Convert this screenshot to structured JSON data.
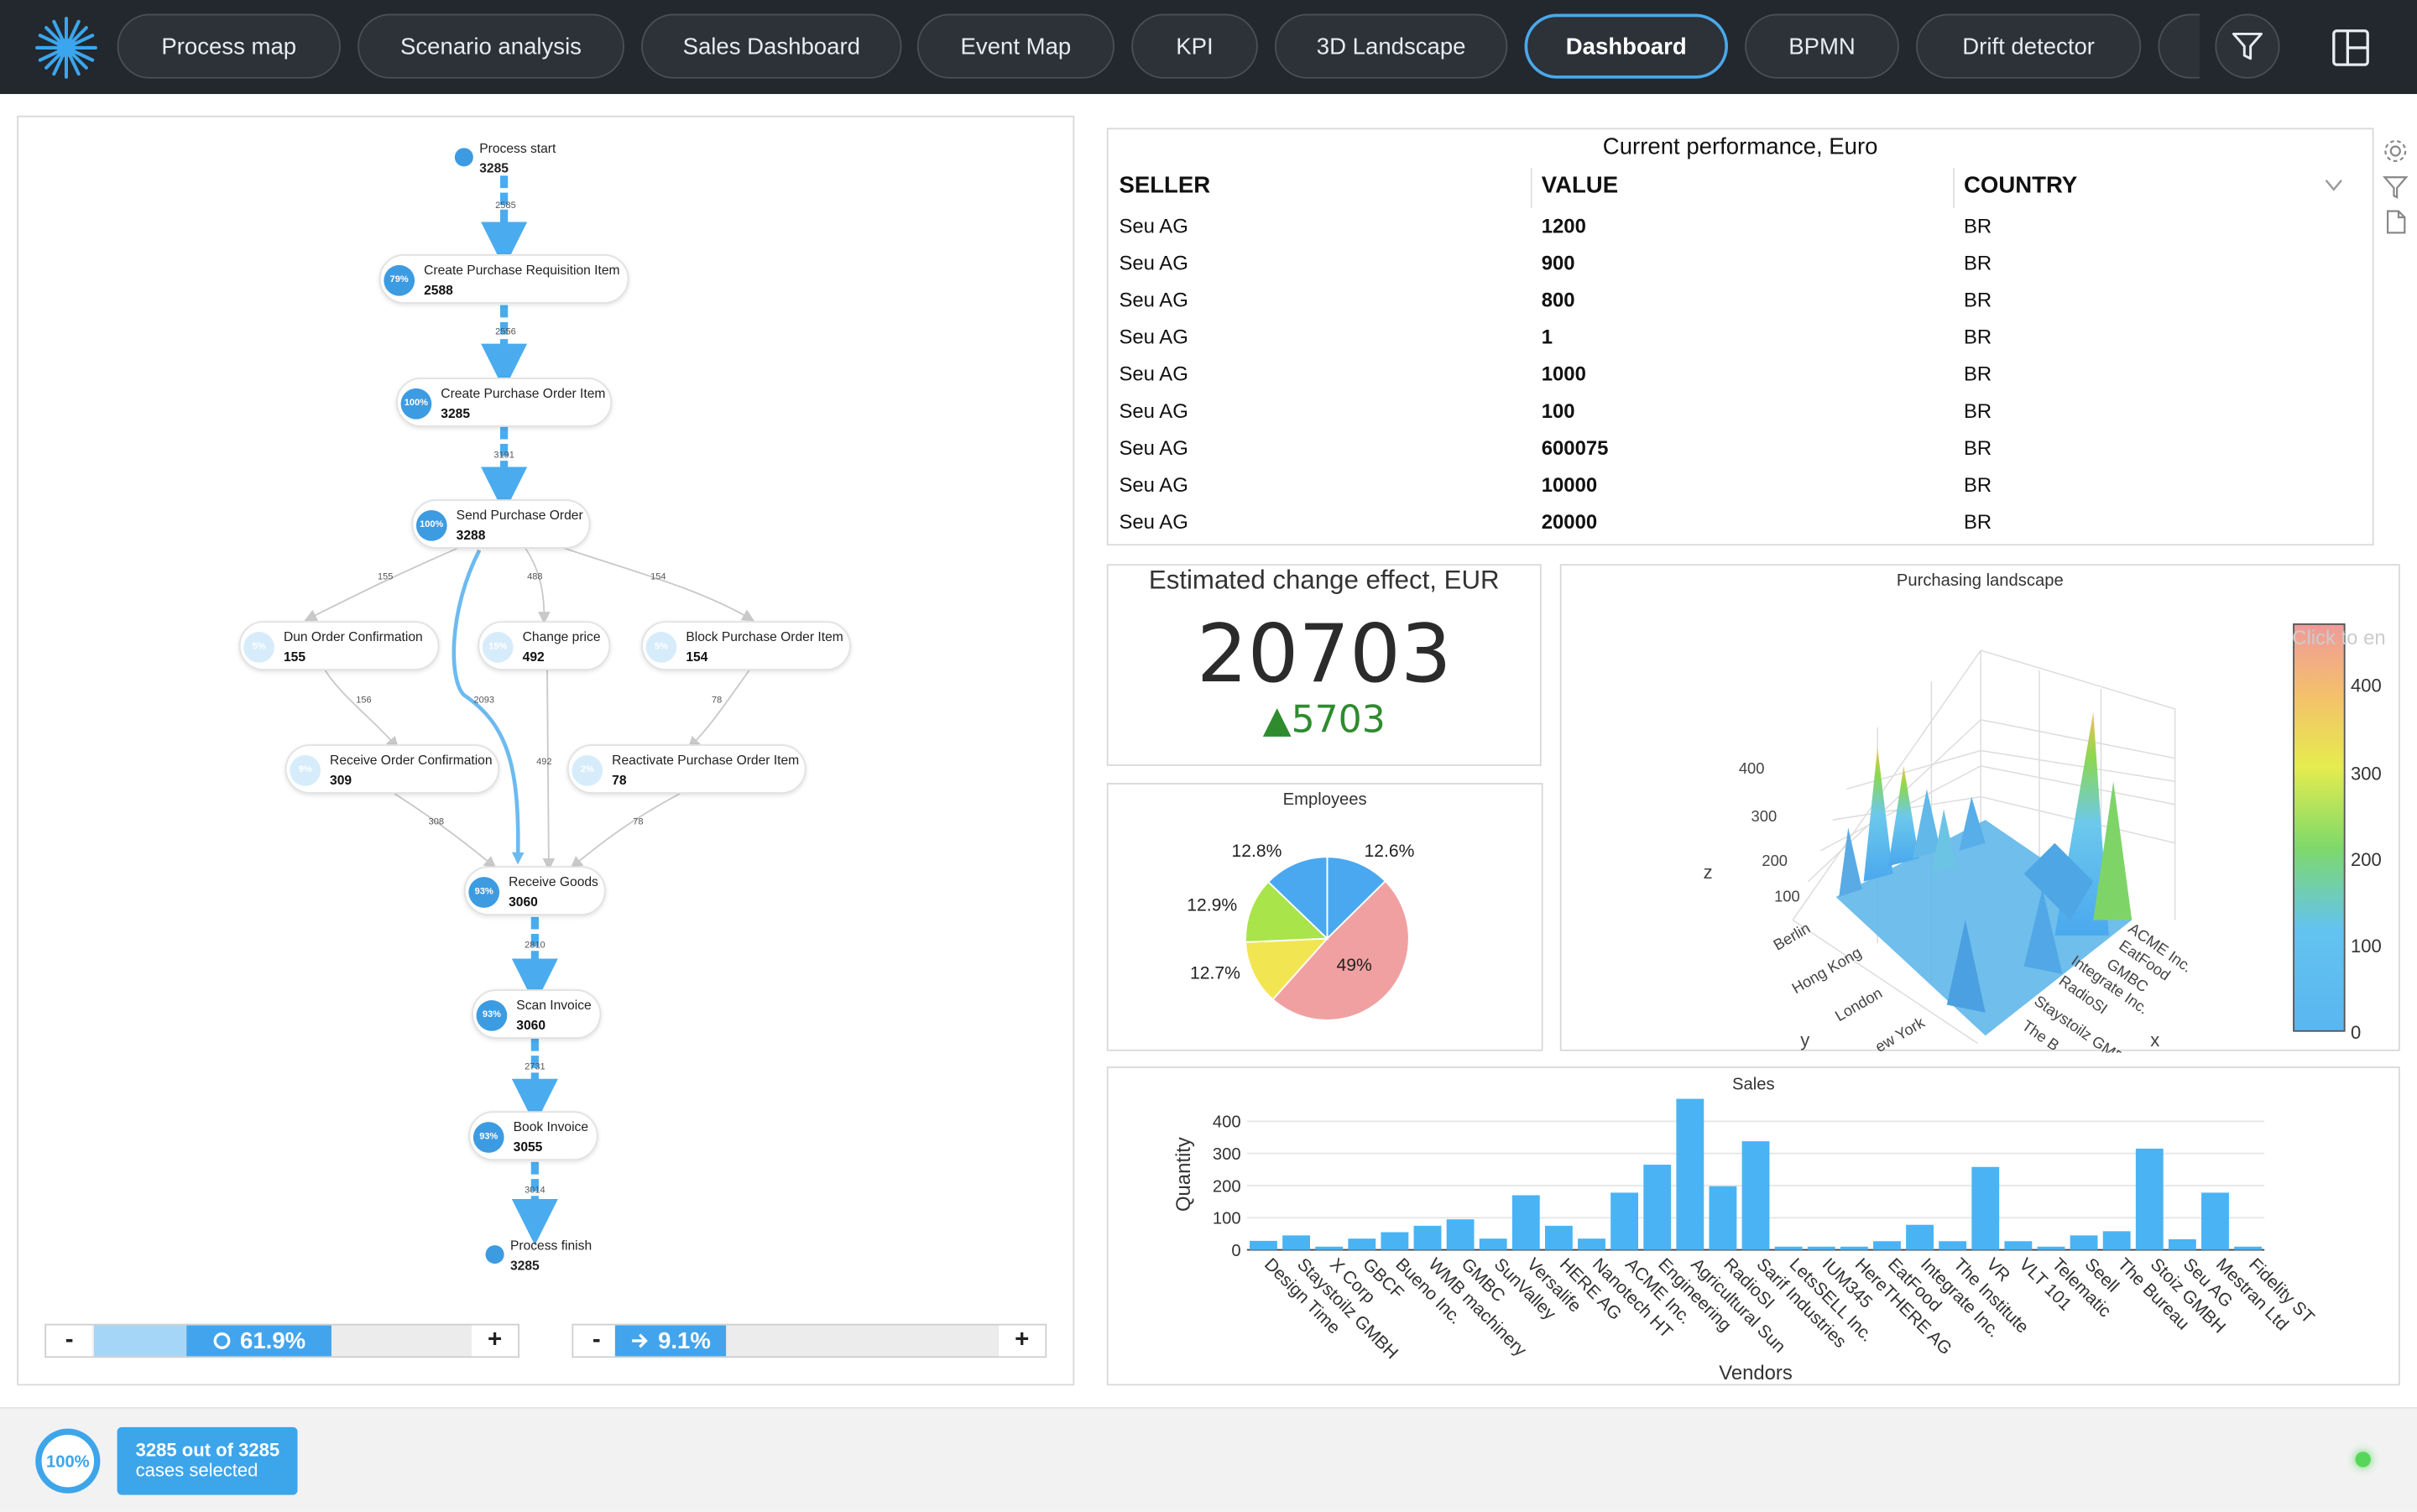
{
  "nav": {
    "tabs": [
      {
        "label": "Process map",
        "active": false
      },
      {
        "label": "Scenario analysis",
        "active": false
      },
      {
        "label": "Sales Dashboard",
        "active": false
      },
      {
        "label": "Event Map",
        "active": false
      },
      {
        "label": "KPI",
        "active": false
      },
      {
        "label": "3D Landscape",
        "active": false
      },
      {
        "label": "Dashboard",
        "active": true
      },
      {
        "label": "BPMN",
        "active": false
      },
      {
        "label": "Drift detector",
        "active": false
      }
    ],
    "icons": {
      "logo": "star-logo-icon",
      "filter": "filter-icon",
      "layout": "layout-icon"
    }
  },
  "process_map": {
    "nodes": [
      {
        "id": "start",
        "label": "Process start",
        "count": "3285",
        "pct": ""
      },
      {
        "id": "cpri",
        "label": "Create Purchase Requisition Item",
        "count": "2588",
        "pct": "79%"
      },
      {
        "id": "cpoi",
        "label": "Create Purchase Order Item",
        "count": "3285",
        "pct": "100%"
      },
      {
        "id": "spo",
        "label": "Send Purchase Order",
        "count": "3288",
        "pct": "100%"
      },
      {
        "id": "doc",
        "label": "Dun Order Confirmation",
        "count": "155",
        "pct": "5%"
      },
      {
        "id": "cp",
        "label": "Change price",
        "count": "492",
        "pct": "15%"
      },
      {
        "id": "bpoi",
        "label": "Block Purchase Order Item",
        "count": "154",
        "pct": "5%"
      },
      {
        "id": "roc",
        "label": "Receive Order Confirmation",
        "count": "309",
        "pct": "9%"
      },
      {
        "id": "rpoi",
        "label": "Reactivate Purchase Order Item",
        "count": "78",
        "pct": "2%"
      },
      {
        "id": "rg",
        "label": "Receive Goods",
        "count": "3060",
        "pct": "93%"
      },
      {
        "id": "si",
        "label": "Scan Invoice",
        "count": "3060",
        "pct": "93%"
      },
      {
        "id": "bi",
        "label": "Book Invoice",
        "count": "3055",
        "pct": "93%"
      },
      {
        "id": "finish",
        "label": "Process finish",
        "count": "3285",
        "pct": ""
      }
    ],
    "edge_labels": [
      "2585",
      "2556",
      "3191",
      "155",
      "488",
      "154",
      "156",
      "2093",
      "78",
      "492",
      "308",
      "78",
      "2810",
      "2731",
      "3014"
    ],
    "slider_activities": {
      "value": "61.9%",
      "fraction": 0.619,
      "minus": "-",
      "plus": "+"
    },
    "slider_paths": {
      "value": "9.1%",
      "fraction": 0.091,
      "minus": "-",
      "plus": "+"
    }
  },
  "performance_table": {
    "title": "Current performance, Euro",
    "columns": [
      "SELLER",
      "VALUE",
      "COUNTRY"
    ],
    "rows": [
      [
        "Seu AG",
        "1200",
        "BR"
      ],
      [
        "Seu AG",
        "900",
        "BR"
      ],
      [
        "Seu AG",
        "800",
        "BR"
      ],
      [
        "Seu AG",
        "1",
        "BR"
      ],
      [
        "Seu AG",
        "1000",
        "BR"
      ],
      [
        "Seu AG",
        "100",
        "BR"
      ],
      [
        "Seu AG",
        "600075",
        "BR"
      ],
      [
        "Seu AG",
        "10000",
        "BR"
      ],
      [
        "Seu AG",
        "20000",
        "BR"
      ]
    ],
    "icons": [
      "gear-icon",
      "filter-icon",
      "export-icon",
      "chevron-down-icon"
    ]
  },
  "kpi": {
    "title": "Estimated  change effect, EUR",
    "value": "20703",
    "delta": "▲5703",
    "delta_color": "#2e8b2e"
  },
  "chart_data": [
    {
      "type": "pie",
      "title": "Employees",
      "labels": [
        "12.6%",
        "49%",
        "12.7%",
        "12.9%",
        "12.8%"
      ],
      "values": [
        12.6,
        49.0,
        12.7,
        12.9,
        12.8
      ],
      "colors": [
        "#4aa8f0",
        "#f0a0a0",
        "#f2e552",
        "#a8e44a",
        "#4aa8f0"
      ]
    },
    {
      "type": "surface",
      "title": "Purchasing landscape",
      "xlabel": "x",
      "ylabel": "y",
      "zlabel": "z",
      "x_ticks": [
        "ACME Inc.",
        "EatFood",
        "GMBC",
        "Integrate Inc.",
        "RadioSI",
        "Staystoilz GMB",
        "The B"
      ],
      "y_ticks": [
        "Berlin",
        "Hong Kong",
        "London",
        "ew York"
      ],
      "z_ticks": [
        "100",
        "200",
        "300",
        "400"
      ],
      "colorbar_ticks": [
        "0",
        "100",
        "200",
        "300",
        "400"
      ],
      "colorbar_range": [
        0,
        450
      ],
      "overlay_text": "Click to en"
    },
    {
      "type": "bar",
      "title": "Sales",
      "xlabel": "Vendors",
      "ylabel": "Quantity",
      "ylim": [
        0,
        470
      ],
      "yticks": [
        0,
        100,
        200,
        300,
        400
      ],
      "color": "#4ab3f4",
      "categories": [
        "Design Time",
        "Staystoilz GMBH",
        "X Corp",
        "GBCF",
        "Bueno Inc.",
        "WMB machinery",
        "GMBC",
        "SunValley",
        "Versalife",
        "HERE AG",
        "Nanotech HT",
        "ACME Inc.",
        "Engineering",
        "Agricultural Sun",
        "RadioSI",
        "Sarif Industries",
        "LetsSELL Inc.",
        "IUM345",
        "HereTHERE AG",
        "EatFood",
        "Integrate Inc.",
        "The Institute",
        "VR",
        "VLT 101",
        "Telematic",
        "Seell",
        "The Bureau",
        "Stoiz GMBH",
        "Seu AG",
        "Mestran Ltd",
        "Fidelity ST"
      ],
      "values": [
        28,
        45,
        10,
        35,
        55,
        75,
        95,
        35,
        170,
        75,
        35,
        178,
        265,
        470,
        198,
        338,
        10,
        10,
        10,
        27,
        78,
        27,
        258,
        27,
        10,
        45,
        58,
        315,
        33,
        178,
        10
      ]
    }
  ],
  "footer": {
    "ring_value": "100%",
    "cases_line1": "3285 out of 3285",
    "cases_line2": "cases selected",
    "status": "online"
  }
}
